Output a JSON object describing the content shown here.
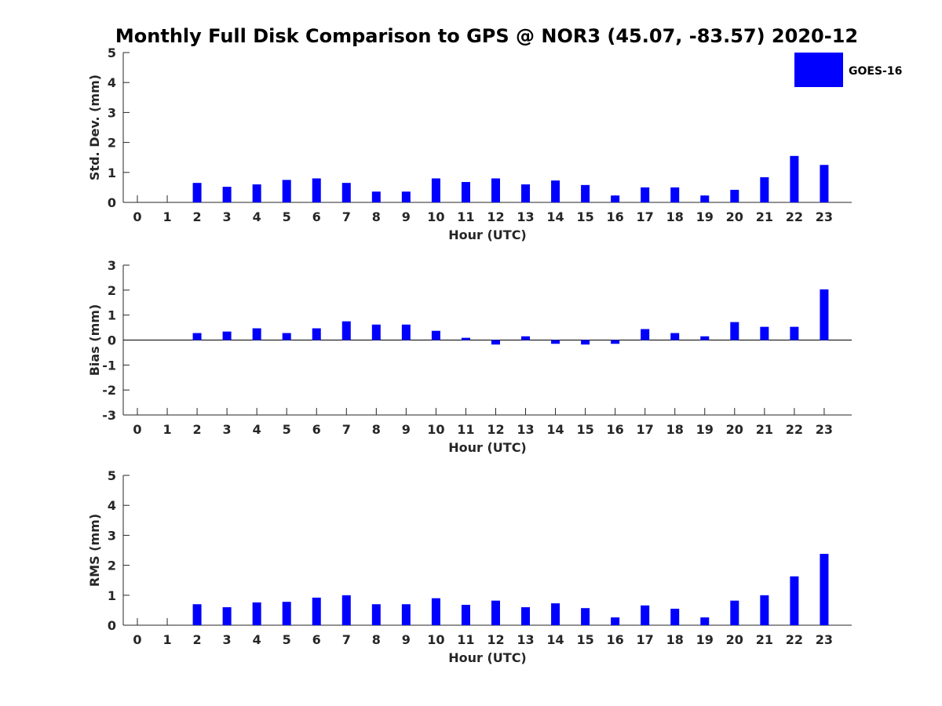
{
  "chart_data": {
    "type": "bar",
    "title": "Monthly Full Disk Comparison to GPS @ NOR3 (45.07, -83.57) 2020-12",
    "legend": {
      "position": "top-right",
      "entries": [
        {
          "name": "GOES-16",
          "color": "#0000ff"
        }
      ]
    },
    "categories": [
      "0",
      "1",
      "2",
      "3",
      "4",
      "5",
      "6",
      "7",
      "8",
      "9",
      "10",
      "11",
      "12",
      "13",
      "14",
      "15",
      "16",
      "17",
      "18",
      "19",
      "20",
      "21",
      "22",
      "23"
    ],
    "bar_color": "#0000ff",
    "panels": [
      {
        "id": "std",
        "ylabel": "Std. Dev. (mm)",
        "xlabel": "Hour (UTC)",
        "ylim": [
          0,
          5
        ],
        "yticks": [
          "0",
          "1",
          "2",
          "3",
          "4",
          "5"
        ],
        "series": [
          {
            "name": "GOES-16",
            "values": [
              null,
              null,
              0.65,
              0.52,
              0.6,
              0.75,
              0.8,
              0.65,
              0.36,
              0.36,
              0.8,
              0.68,
              0.8,
              0.6,
              0.73,
              0.58,
              0.23,
              0.5,
              0.5,
              0.23,
              0.42,
              0.84,
              1.55,
              1.25
            ]
          }
        ]
      },
      {
        "id": "bias",
        "ylabel": "Bias (mm)",
        "xlabel": "Hour (UTC)",
        "ylim": [
          -3,
          3
        ],
        "yticks": [
          "-3",
          "-2",
          "-1",
          "0",
          "1",
          "2",
          "3"
        ],
        "series": [
          {
            "name": "GOES-16",
            "values": [
              null,
              null,
              0.28,
              0.34,
              0.47,
              0.28,
              0.47,
              0.75,
              0.62,
              0.62,
              0.37,
              0.09,
              -0.18,
              0.15,
              -0.15,
              -0.18,
              -0.15,
              0.44,
              0.28,
              0.15,
              0.72,
              0.53,
              0.53,
              2.03
            ]
          }
        ]
      },
      {
        "id": "rms",
        "ylabel": "RMS (mm)",
        "xlabel": "Hour (UTC)",
        "ylim": [
          0,
          5
        ],
        "yticks": [
          "0",
          "1",
          "2",
          "3",
          "4",
          "5"
        ],
        "series": [
          {
            "name": "GOES-16",
            "values": [
              null,
              null,
              0.7,
              0.6,
              0.76,
              0.78,
              0.92,
              1.0,
              0.7,
              0.7,
              0.9,
              0.68,
              0.82,
              0.6,
              0.73,
              0.57,
              0.26,
              0.66,
              0.55,
              0.26,
              0.82,
              1.0,
              1.63,
              2.38
            ]
          }
        ]
      }
    ]
  }
}
